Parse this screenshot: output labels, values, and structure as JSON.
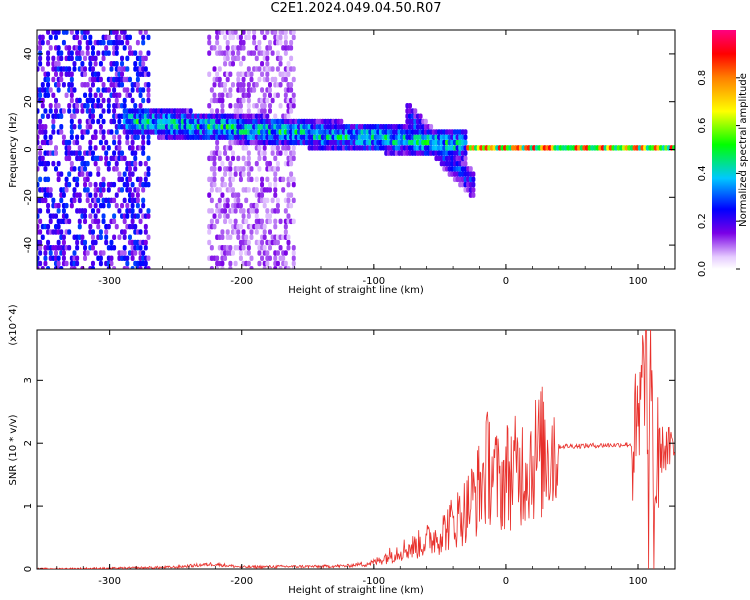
{
  "title": "C2E1.2024.049.04.50.R07",
  "chart_data": [
    {
      "type": "heatmap",
      "xlabel": "Height of straight line (km)",
      "ylabel": "Frequency (Hz)",
      "xlim": [
        -355,
        128
      ],
      "ylim": [
        -50,
        50
      ],
      "xticks": [
        -300,
        -200,
        -100,
        0,
        100
      ],
      "yticks": [
        -40,
        -20,
        0,
        20,
        40
      ],
      "colorbar": {
        "label": "Normalized spectral amplitude",
        "range": [
          0.0,
          1.0
        ],
        "ticks": [
          "0.0",
          "0.2",
          "0.4",
          "0.6",
          "0.8"
        ],
        "colormap": "rainbow (white-violet-blue-cyan-green-yellow-red-magenta)"
      },
      "features": [
        {
          "name": "broadband noise",
          "x_range": [
            -355,
            -270
          ],
          "freq_range": [
            -50,
            50
          ],
          "level": 0.2
        },
        {
          "name": "noise band",
          "x_range": [
            -225,
            -160
          ],
          "freq_range": [
            -50,
            50
          ],
          "level": 0.1
        },
        {
          "name": "main return",
          "x_range": [
            -290,
            -30
          ],
          "freq_center_start": 12,
          "freq_center_end": 2,
          "level": 0.45
        },
        {
          "name": "diagonal feature",
          "x_range": [
            -75,
            -25
          ],
          "freq_center_start": 14,
          "freq_center_end": -15,
          "level": 0.3
        },
        {
          "name": "ground return",
          "x_range": [
            -30,
            128
          ],
          "freq_center": 1,
          "level": 0.85
        }
      ]
    },
    {
      "type": "line",
      "xlabel": "Height of straight line (km)",
      "ylabel": "SNR (10 * v/v)",
      "yscale_label": "(x10^4)",
      "xlim": [
        -355,
        128
      ],
      "ylim": [
        0,
        3.8
      ],
      "xticks": [
        -300,
        -200,
        -100,
        0,
        100
      ],
      "yticks": [
        0,
        1,
        2,
        3
      ],
      "color": "#e8302b",
      "series": [
        {
          "x": [
            -355,
            -300,
            -250,
            -222,
            -200,
            -165,
            -140,
            -120,
            -100,
            -90,
            -80,
            -70,
            -60,
            -50,
            -40,
            -30,
            -20,
            -12,
            -5,
            0,
            10,
            20,
            30,
            40,
            60,
            80,
            90,
            95,
            100,
            104,
            106,
            108,
            110,
            112,
            115,
            120,
            128
          ],
          "y": [
            0.0,
            0.01,
            0.03,
            0.08,
            0.03,
            0.04,
            0.04,
            0.05,
            0.1,
            0.2,
            0.3,
            0.35,
            0.45,
            0.55,
            0.75,
            0.95,
            1.3,
            1.7,
            1.3,
            1.5,
            1.55,
            1.75,
            1.88,
            1.95,
            1.96,
            1.97,
            1.98,
            1.98,
            2.0,
            3.0,
            3.7,
            0.4,
            3.5,
            0.7,
            1.9,
            1.9,
            1.88
          ]
        }
      ]
    }
  ]
}
